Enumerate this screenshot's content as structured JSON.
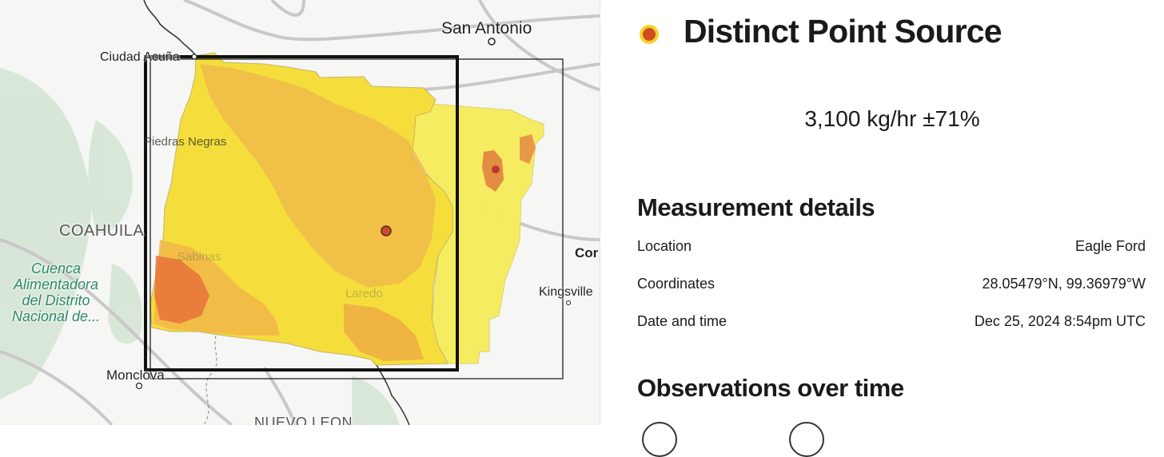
{
  "map": {
    "labels": {
      "san_antonio": "San Antonio",
      "ciudad_acuna": "Ciudad Acuña",
      "piedras_negras": "Piedras Negras",
      "coahuila": "COAHUILA",
      "cuenca": "Cuenca\nAlimentadora\ndel Distrito\nNacional de...",
      "sabinas": "Sabinas",
      "laredo": "Laredo",
      "kingsville": "Kingsville",
      "cor": "Cor",
      "monclova": "Monclova",
      "nuevo_leon": "NUEVO LEON"
    },
    "colors": {
      "plume_low": "#f7ec46",
      "plume_mid": "#f2b23a",
      "plume_high": "#e3602a",
      "plume_peak": "#c2342a",
      "box_stroke": "#111111",
      "road": "#c9c9c9",
      "green_area": "#cfe3cf"
    }
  },
  "panel": {
    "source_type": "Distinct Point Source",
    "emission_rate": "3,100 kg/hr ±71%",
    "measurement_title": "Measurement details",
    "details": [
      {
        "label": "Location",
        "value": "Eagle Ford"
      },
      {
        "label": "Coordinates",
        "value": "28.05479°N, 99.36979°W"
      },
      {
        "label": "Date and time",
        "value": "Dec 25, 2024 8:54pm UTC"
      }
    ],
    "observations_title": "Observations over time"
  }
}
